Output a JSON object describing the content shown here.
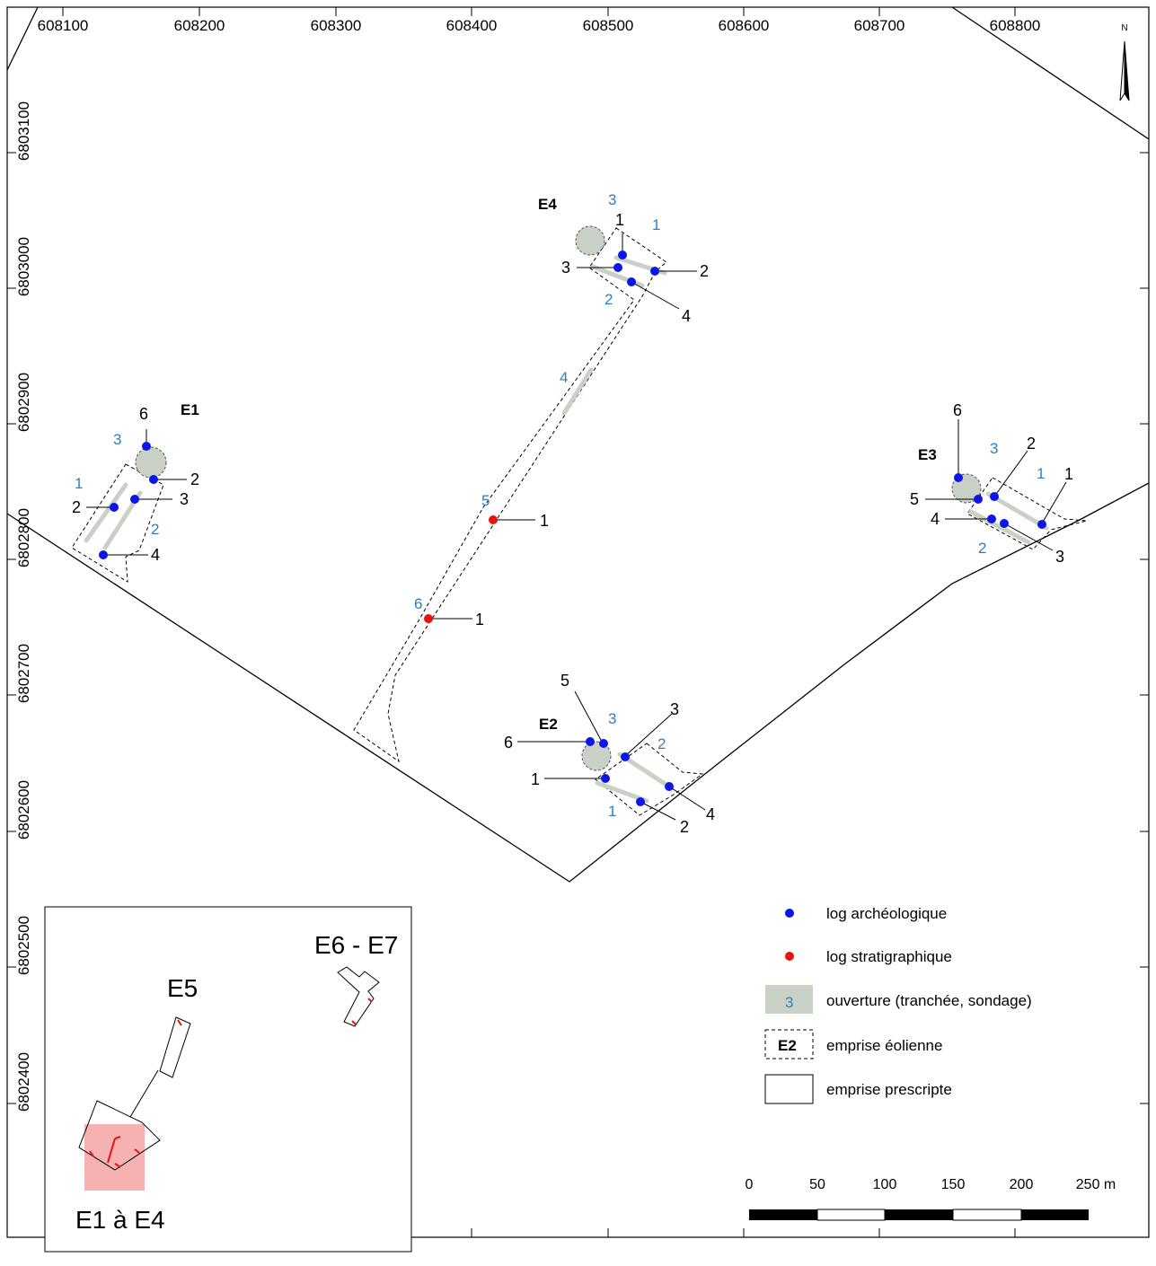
{
  "x_ticks": [
    "608100",
    "608200",
    "608300",
    "608400",
    "608500",
    "608600",
    "608700",
    "608800"
  ],
  "y_ticks": [
    "6803100",
    "6803000",
    "6802900",
    "6802800",
    "6802700",
    "6802600",
    "6802500",
    "6802400"
  ],
  "north_label": "N",
  "sites": {
    "e1": {
      "label": "E1"
    },
    "e2": {
      "label": "E2"
    },
    "e3": {
      "label": "E3"
    },
    "e4": {
      "label": "E4"
    }
  },
  "blue_numbers": {
    "e1": [
      "3",
      "1",
      "2"
    ],
    "e2": [
      "3",
      "2",
      "1"
    ],
    "e3": [
      "3",
      "1",
      "2"
    ],
    "e4": [
      "3",
      "1",
      "2",
      "4"
    ],
    "corridor": [
      "5",
      "6"
    ]
  },
  "black_numbers": {
    "e1": [
      "6",
      "2",
      "3",
      "2",
      "4"
    ],
    "e2": [
      "5",
      "3",
      "6",
      "1",
      "2",
      "4"
    ],
    "e3": [
      "6",
      "2",
      "1",
      "5",
      "4",
      "3"
    ],
    "e4": [
      "1",
      "2",
      "3",
      "4"
    ],
    "corridor": [
      "1",
      "1"
    ]
  },
  "legend": {
    "archeo": "log archéologique",
    "strati": "log stratigraphique",
    "opening_symbol": "3",
    "opening": "ouverture (tranchée, sondage)",
    "wind_symbol": "E2",
    "wind": "emprise éolienne",
    "prescribed": "emprise prescripte"
  },
  "scale": {
    "labels": [
      "0",
      "50",
      "100",
      "150",
      "200",
      "250 m"
    ]
  },
  "inset": {
    "label_e6e7": "E6 - E7",
    "label_e5": "E5",
    "label_e1e4": "E1 à E4"
  },
  "colors": {
    "archeo_dot": "#0a17e6",
    "strati_dot": "#e8120f",
    "opening_fill": "#c9d1c6",
    "blue_text": "#2e7fc0",
    "highlight": "#f5a4a4"
  }
}
